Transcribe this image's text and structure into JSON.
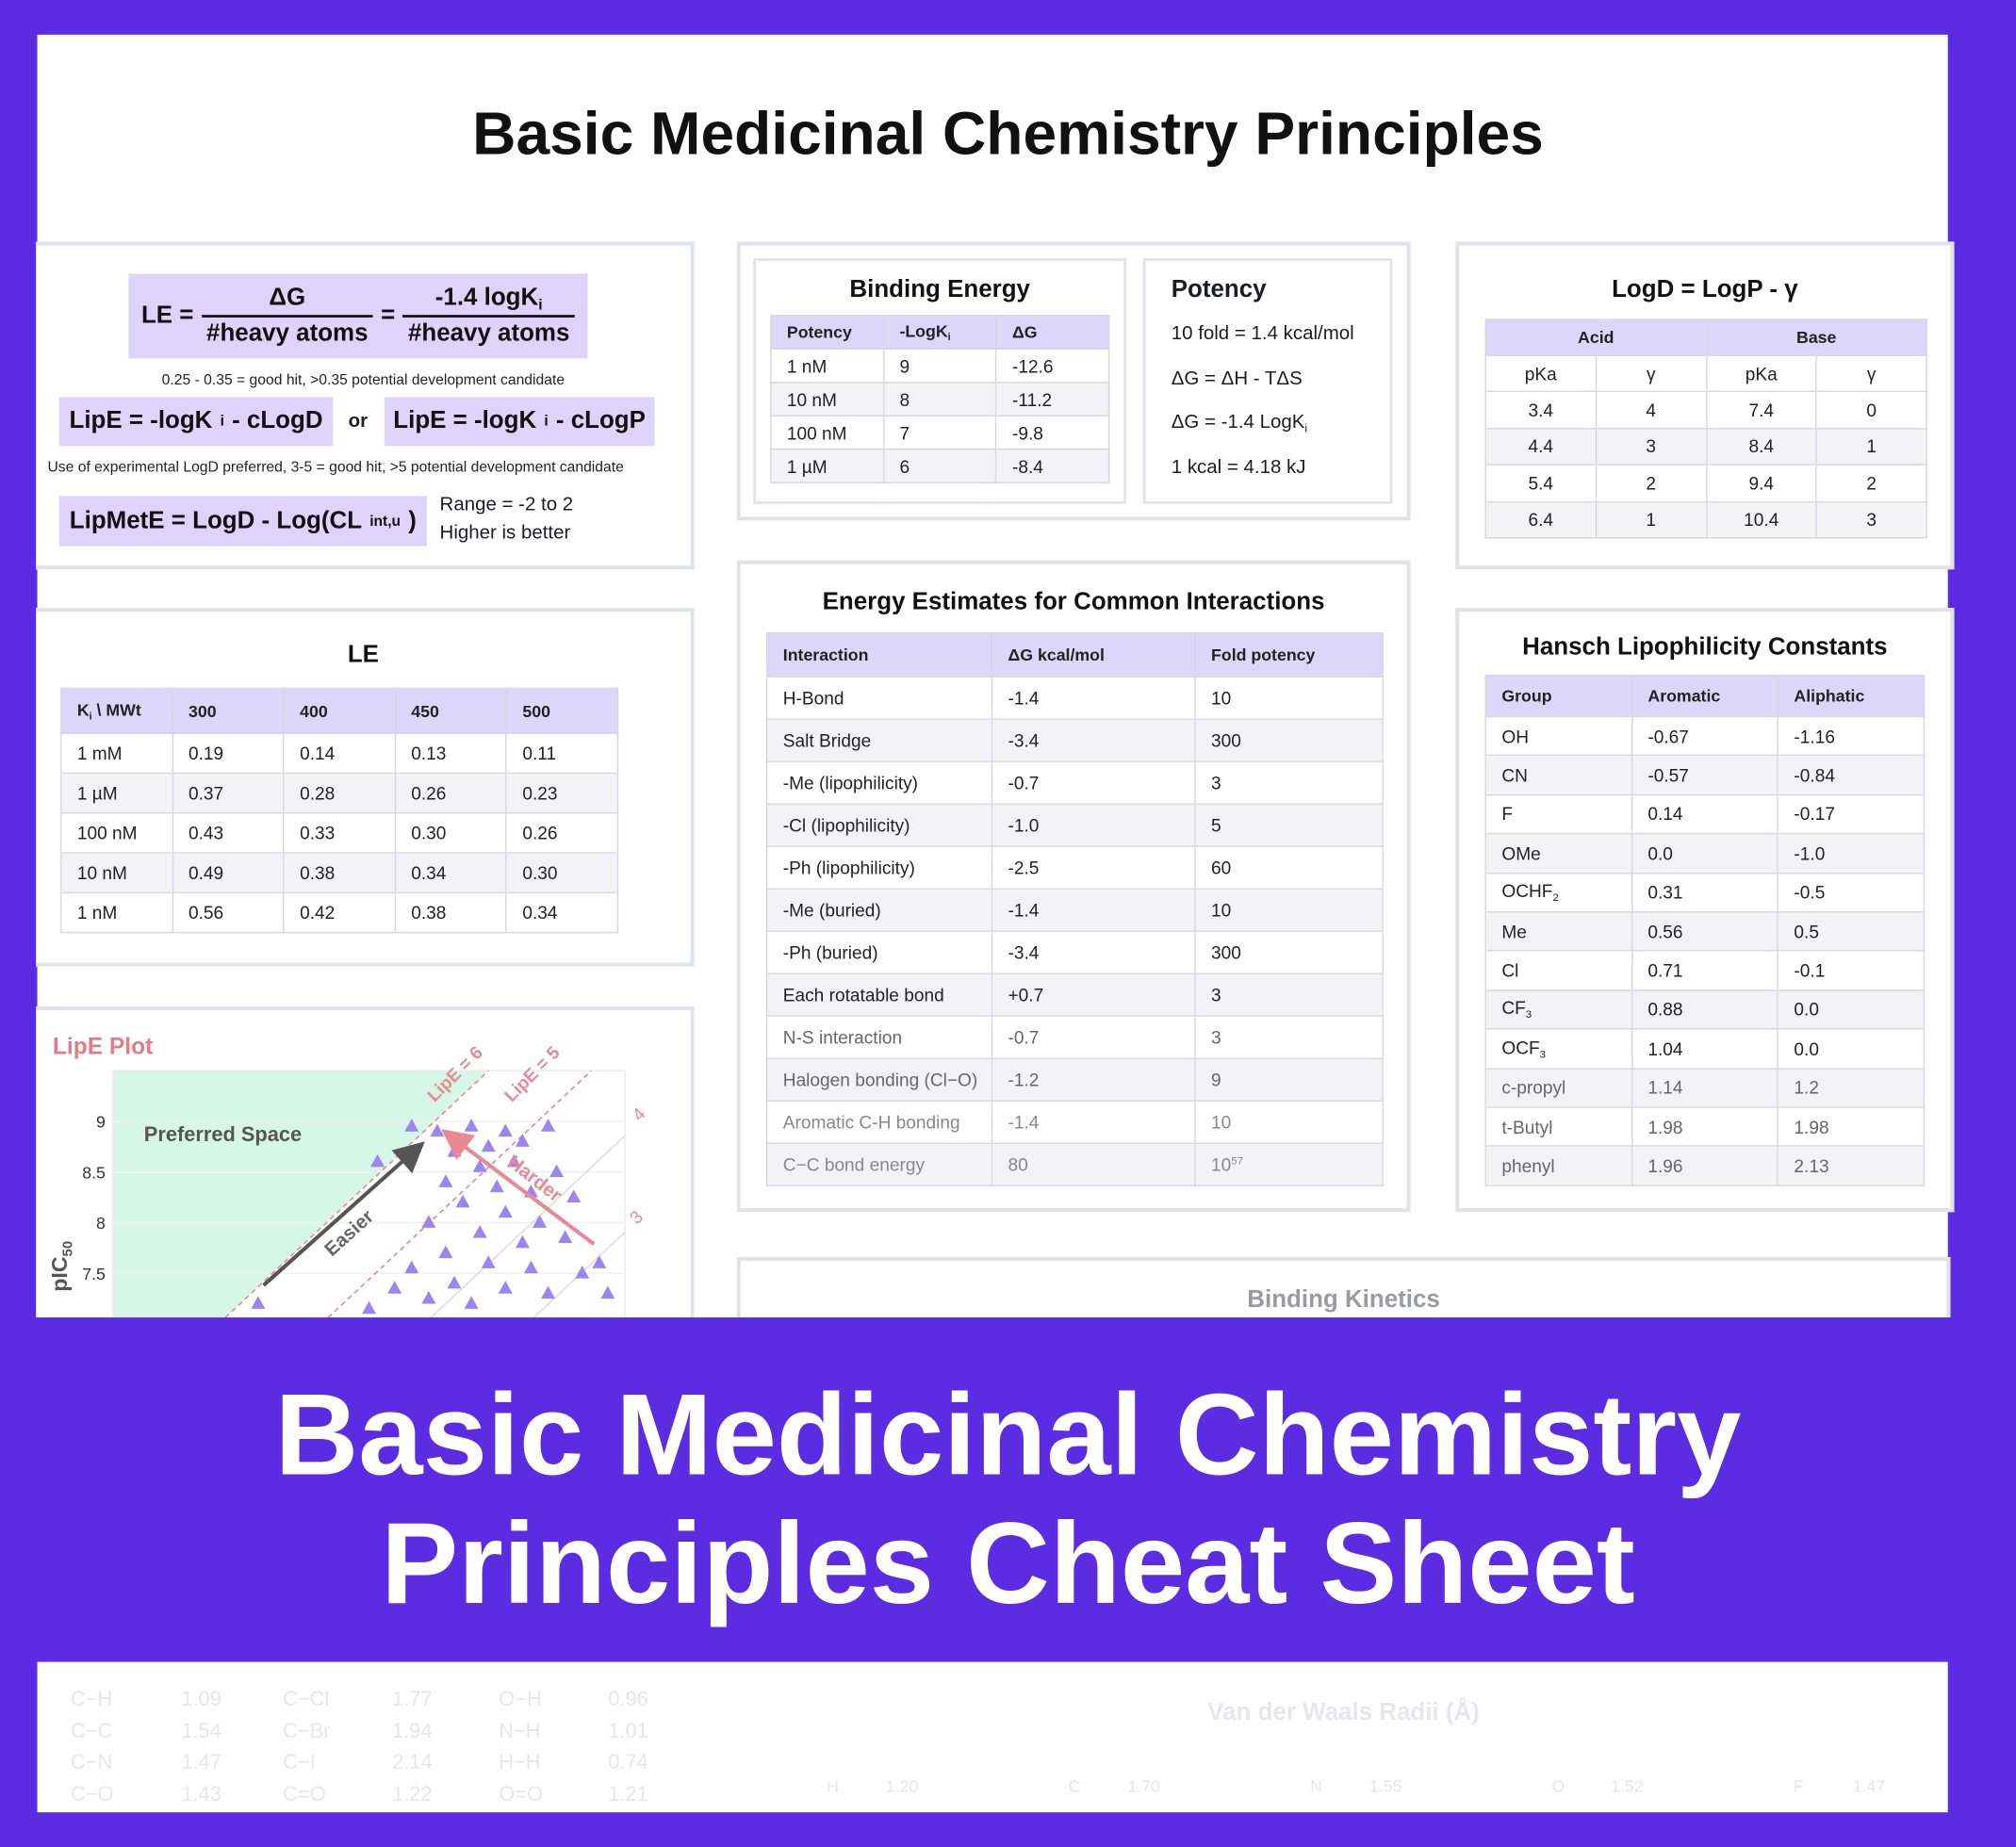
{
  "header": {
    "title": "Basic Medicinal Chemistry Principles"
  },
  "formulas": {
    "le": {
      "lhs": "LE =",
      "num1": "ΔG",
      "den1": "#heavy atoms",
      "eq": "=",
      "num2": [
        "-1.4 logK",
        {
          "sub": "i"
        }
      ],
      "den2": "#heavy atoms"
    },
    "le_note": "0.25 - 0.35 = good hit, >0.35 potential development candidate",
    "lipe_d": [
      "LipE = -logK",
      {
        "sub": "i"
      },
      " - cLogD"
    ],
    "or": "or",
    "lipe_p": [
      "LipE = -logK",
      {
        "sub": "i"
      },
      " - cLogP"
    ],
    "lipe_note": "Use of experimental LogD preferred, 3-5 = good hit, >5 potential development candidate",
    "lipmete": [
      "LipMetE = LogD - Log(CL",
      {
        "sub": "int,u"
      },
      ")"
    ],
    "lipmete_notes": [
      "Range = -2 to 2",
      "Higher is better"
    ]
  },
  "binding_energy": {
    "title": "Binding Energy",
    "columns": [
      "Potency",
      [
        "-LogK",
        {
          "sub": "i"
        }
      ],
      "ΔG"
    ],
    "rows": [
      [
        "1 nM",
        "9",
        "-12.6"
      ],
      [
        "10 nM",
        "8",
        "-11.2"
      ],
      [
        "100 nM",
        "7",
        "-9.8"
      ],
      [
        "1 µM",
        "6",
        "-8.4"
      ]
    ]
  },
  "potency": {
    "title": "Potency",
    "lines": [
      "10 fold = 1.4 kcal/mol",
      "ΔG = ΔH - TΔS",
      [
        "ΔG = -1.4 LogK",
        {
          "sub": "i"
        }
      ],
      "1 kcal = 4.18 kJ"
    ]
  },
  "logd": {
    "title": "LogD = LogP - γ",
    "groups": [
      "Acid",
      "Base"
    ],
    "columns": [
      "pKa",
      "γ",
      "pKa",
      "γ"
    ],
    "rows": [
      [
        "3.4",
        "4",
        "7.4",
        "0"
      ],
      [
        "4.4",
        "3",
        "8.4",
        "1"
      ],
      [
        "5.4",
        "2",
        "9.4",
        "2"
      ],
      [
        "6.4",
        "1",
        "10.4",
        "3"
      ]
    ]
  },
  "le_table": {
    "title": "LE",
    "columns": [
      [
        "K",
        {
          "sub": "i"
        },
        " \\ MWt"
      ],
      "300",
      "400",
      "450",
      "500"
    ],
    "rows": [
      [
        "1 mM",
        "0.19",
        "0.14",
        "0.13",
        "0.11"
      ],
      [
        "1 µM",
        "0.37",
        "0.28",
        "0.26",
        "0.23"
      ],
      [
        "100 nM",
        "0.43",
        "0.33",
        "0.30",
        "0.26"
      ],
      [
        "10 nM",
        "0.49",
        "0.38",
        "0.34",
        "0.30"
      ],
      [
        "1 nM",
        "0.56",
        "0.42",
        "0.38",
        "0.34"
      ]
    ]
  },
  "energy_estimates": {
    "title": "Energy Estimates for Common Interactions",
    "columns": [
      "Interaction",
      "ΔG kcal/mol",
      "Fold potency"
    ],
    "rows": [
      [
        "H-Bond",
        "-1.4",
        "10"
      ],
      [
        "Salt Bridge",
        "-3.4",
        "300"
      ],
      [
        "-Me (lipophilicity)",
        "-0.7",
        "3"
      ],
      [
        "-Cl (lipophilicity)",
        "-1.0",
        "5"
      ],
      [
        "-Ph (lipophilicity)",
        "-2.5",
        "60"
      ],
      [
        "-Me (buried)",
        "-1.4",
        "10"
      ],
      [
        "-Ph (buried)",
        "-3.4",
        "300"
      ],
      [
        "Each rotatable bond",
        "+0.7",
        "3"
      ],
      [
        "N-S interaction",
        "-0.7",
        "3"
      ],
      [
        "Halogen bonding (Cl−O)",
        "-1.2",
        "9"
      ],
      [
        "Aromatic C-H bonding",
        "-1.4",
        "10"
      ],
      [
        "C−C bond energy",
        "80",
        [
          "10",
          {
            "sup": "57"
          }
        ]
      ]
    ]
  },
  "hansch": {
    "title": "Hansch Lipophilicity Constants",
    "columns": [
      "Group",
      "Aromatic",
      "Aliphatic"
    ],
    "rows": [
      [
        "OH",
        "-0.67",
        "-1.16"
      ],
      [
        "CN",
        "-0.57",
        "-0.84"
      ],
      [
        "F",
        "0.14",
        "-0.17"
      ],
      [
        "OMe",
        "0.0",
        "-1.0"
      ],
      [
        [
          "OCHF",
          {
            "sub": "2"
          }
        ],
        "0.31",
        "-0.5"
      ],
      [
        "Me",
        "0.56",
        "0.5"
      ],
      [
        "Cl",
        "0.71",
        "-0.1"
      ],
      [
        [
          "CF",
          {
            "sub": "3"
          }
        ],
        "0.88",
        "0.0"
      ],
      [
        [
          "OCF",
          {
            "sub": "3"
          }
        ],
        "1.04",
        "0.0"
      ],
      [
        "c-propyl",
        "1.14",
        "1.2"
      ],
      [
        "t-Butyl",
        "1.98",
        "1.98"
      ],
      [
        "phenyl",
        "1.96",
        "2.13"
      ]
    ]
  },
  "lipe_plot": {
    "title": "LipE Plot",
    "ylabel": [
      "pIC",
      {
        "sub": "50"
      }
    ],
    "region_label": "Preferred Space",
    "easier": "Easier",
    "harder": "Harder",
    "lines": [
      "LipE = 6",
      "LipE = 5",
      "4",
      "3"
    ],
    "ylim": [
      7,
      9.5
    ],
    "yticks": [
      9,
      8.5,
      8,
      7.5
    ],
    "xlim": [
      0,
      6
    ],
    "x": [
      3.1,
      3.5,
      3.8,
      4.2,
      4.6,
      5.1,
      4.8,
      4.4,
      4.0,
      4.3,
      4.7,
      5.2,
      3.9,
      4.5,
      4.9,
      5.4,
      4.1,
      4.6,
      5.0,
      3.7,
      4.3,
      4.8,
      5.3,
      3.9,
      4.4,
      4.9,
      5.5,
      3.5,
      4.0,
      4.6,
      5.1,
      3.3,
      3.7,
      4.2,
      5.7,
      5.8,
      1.7,
      3.0
    ],
    "y": [
      8.6,
      8.95,
      8.9,
      8.95,
      8.9,
      8.95,
      8.8,
      8.75,
      8.7,
      8.55,
      8.6,
      8.5,
      8.4,
      8.35,
      8.3,
      8.25,
      8.2,
      8.1,
      8.0,
      8.0,
      7.9,
      7.8,
      7.85,
      7.7,
      7.6,
      7.55,
      7.5,
      7.55,
      7.4,
      7.35,
      7.3,
      7.35,
      7.25,
      7.2,
      7.6,
      7.3,
      7.2,
      7.15
    ]
  },
  "binding_kinetics": {
    "title": "Binding Kinetics"
  },
  "bond_lengths": {
    "rows": [
      [
        "C−H",
        "1.09",
        "C−Cl",
        "1.77",
        "O−H",
        "0.96"
      ],
      [
        "C−C",
        "1.54",
        "C−Br",
        "1.94",
        "N−H",
        "1.01"
      ],
      [
        "C−N",
        "1.47",
        "C−I",
        "2.14",
        "H−H",
        "0.74"
      ],
      [
        "C−O",
        "1.43",
        "C=O",
        "1.22",
        "O=O",
        "1.21"
      ]
    ]
  },
  "vdw_radii": {
    "title": "Van der Waals Radii (Å)",
    "row": [
      "H",
      "1.20",
      "C",
      "1.70",
      "N",
      "1.55",
      "O",
      "1.52",
      "F",
      "1.47"
    ]
  },
  "banner": {
    "lines": [
      "Basic Medicinal Chemistry",
      "Principles Cheat Sheet"
    ]
  }
}
